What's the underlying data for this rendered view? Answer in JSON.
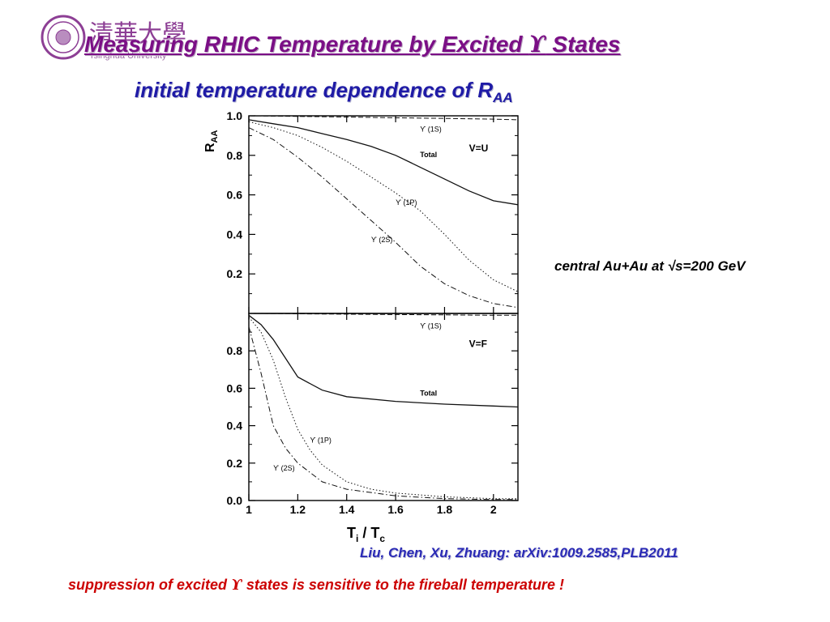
{
  "slide": {
    "logo_text": "清華大學",
    "logo_subtext": "Tsinghua University",
    "title_part1": "Measuring RHIC Temperature by Excited ",
    "upsilon_symbol": "ϒ",
    "title_part2": " States",
    "subtitle": "initial temperature dependence of R",
    "subtitle_sub": "AA",
    "side_note": "central Au+Au at √s=200 GeV",
    "reference": "Liu, Chen, Xu, Zhuang: arXiv:1009.2585,PLB2011",
    "conclusion_part1": "suppression of excited ",
    "conclusion_part2": " states is sensitive to the fireball temperature !",
    "colors": {
      "title": "#7b0f86",
      "subtitle": "#1f1ba6",
      "reference": "#2a2ab5",
      "conclusion": "#cc0000"
    }
  },
  "chart_data": [
    {
      "type": "line",
      "panel": "top",
      "title": "",
      "annotation": "V=U",
      "ylabel": "R",
      "ylabel_sub": "AA",
      "xlim": [
        1,
        2.1
      ],
      "ylim": [
        0,
        1.0
      ],
      "yticks": [
        "0.2",
        "0.4",
        "0.6",
        "0.8",
        "1.0"
      ],
      "series": [
        {
          "name": "ϒ (1S)",
          "style": "dashed",
          "x": [
            1,
            1.2,
            1.4,
            1.6,
            1.8,
            2.0,
            2.1
          ],
          "y": [
            1.0,
            0.997,
            0.994,
            0.99,
            0.987,
            0.983,
            0.98
          ]
        },
        {
          "name": "Total",
          "style": "solid",
          "x": [
            1,
            1.1,
            1.2,
            1.3,
            1.4,
            1.5,
            1.6,
            1.7,
            1.8,
            1.9,
            2.0,
            2.1
          ],
          "y": [
            0.98,
            0.96,
            0.94,
            0.91,
            0.88,
            0.845,
            0.8,
            0.74,
            0.68,
            0.62,
            0.57,
            0.55
          ]
        },
        {
          "name": "ϒ (1P)",
          "style": "dotted",
          "x": [
            1,
            1.1,
            1.2,
            1.3,
            1.4,
            1.5,
            1.6,
            1.7,
            1.8,
            1.9,
            2.0,
            2.1
          ],
          "y": [
            0.97,
            0.94,
            0.9,
            0.84,
            0.77,
            0.69,
            0.61,
            0.52,
            0.4,
            0.27,
            0.17,
            0.11
          ]
        },
        {
          "name": "ϒ (2S)",
          "style": "dashdot",
          "x": [
            1,
            1.1,
            1.2,
            1.3,
            1.4,
            1.5,
            1.6,
            1.7,
            1.8,
            1.9,
            2.0,
            2.1
          ],
          "y": [
            0.94,
            0.88,
            0.79,
            0.69,
            0.58,
            0.47,
            0.36,
            0.24,
            0.15,
            0.09,
            0.05,
            0.03
          ]
        }
      ]
    },
    {
      "type": "line",
      "panel": "bottom",
      "title": "",
      "annotation": "V=F",
      "xlabel": "T",
      "xlabel_sub1": "i",
      "xlabel_mid": " / T",
      "xlabel_sub2": "c",
      "xlim": [
        1,
        2.1
      ],
      "ylim": [
        0,
        1.0
      ],
      "xticks": [
        "1",
        "1.2",
        "1.4",
        "1.6",
        "1.8",
        "2"
      ],
      "yticks": [
        "0.0",
        "0.2",
        "0.4",
        "0.6",
        "0.8"
      ],
      "series": [
        {
          "name": "ϒ (1S)",
          "style": "dashed",
          "x": [
            1,
            1.2,
            1.4,
            1.6,
            1.8,
            2.0,
            2.1
          ],
          "y": [
            1.0,
            0.998,
            0.996,
            0.994,
            0.992,
            0.99,
            0.99
          ]
        },
        {
          "name": "Total",
          "style": "solid",
          "x": [
            1,
            1.05,
            1.1,
            1.15,
            1.2,
            1.3,
            1.4,
            1.6,
            1.8,
            2.0,
            2.1
          ],
          "y": [
            0.99,
            0.94,
            0.86,
            0.76,
            0.66,
            0.59,
            0.555,
            0.53,
            0.515,
            0.505,
            0.5
          ]
        },
        {
          "name": "ϒ (1P)",
          "style": "dotted",
          "x": [
            1,
            1.05,
            1.1,
            1.15,
            1.2,
            1.25,
            1.3,
            1.4,
            1.5,
            1.6,
            1.8,
            2.0,
            2.1
          ],
          "y": [
            0.98,
            0.9,
            0.75,
            0.55,
            0.38,
            0.27,
            0.19,
            0.1,
            0.06,
            0.04,
            0.02,
            0.01,
            0.01
          ]
        },
        {
          "name": "ϒ (2S)",
          "style": "dashdot",
          "x": [
            1,
            1.05,
            1.1,
            1.15,
            1.2,
            1.3,
            1.4,
            1.6,
            1.8,
            2.0,
            2.1
          ],
          "y": [
            0.93,
            0.68,
            0.4,
            0.28,
            0.2,
            0.1,
            0.06,
            0.025,
            0.01,
            0.005,
            0.005
          ]
        }
      ]
    }
  ]
}
